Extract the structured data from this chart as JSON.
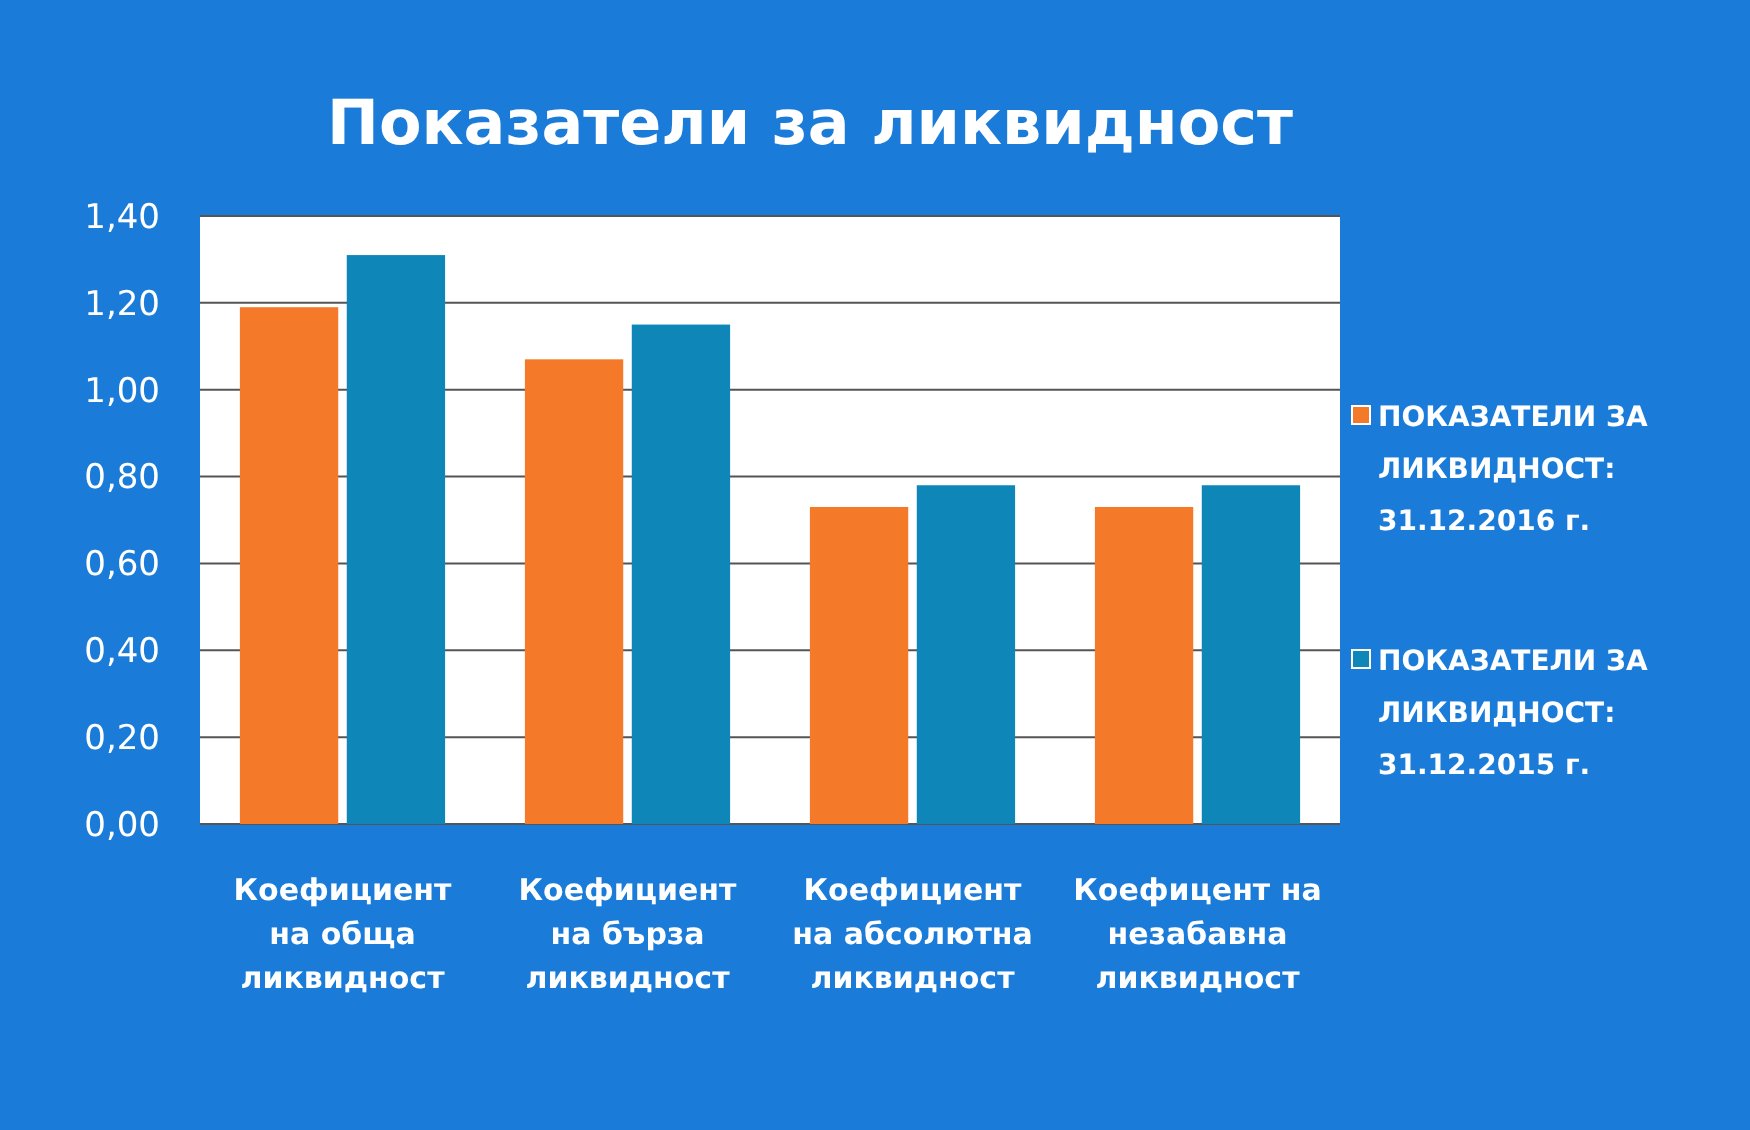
{
  "chart_data": {
    "type": "bar",
    "title": "Показатели за ликвидност",
    "categories": [
      "Коефициент на обща ликвидност",
      "Коефициент на бърза ликвидност",
      "Коефициент на абсолютна ликвидност",
      "Коефицент на незабавна ликвидност"
    ],
    "series": [
      {
        "name": "ПОКАЗАТЕЛИ ЗА ЛИКВИДНОСТ: 31.12.2016 г.",
        "color": "#f47a2a",
        "values": [
          1.19,
          1.07,
          0.73,
          0.73
        ]
      },
      {
        "name": "ПОКАЗАТЕЛИ ЗА ЛИКВИДНОСТ: 31.12.2015 г.",
        "color": "#0e86b8",
        "values": [
          1.31,
          1.15,
          0.78,
          0.78
        ]
      }
    ],
    "ylim": [
      0,
      1.4
    ],
    "yticks": [
      {
        "value": 0,
        "label": "0,00"
      },
      {
        "value": 0.2,
        "label": "0,20"
      },
      {
        "value": 0.4,
        "label": "0,40"
      },
      {
        "value": 0.6,
        "label": "0,60"
      },
      {
        "value": 0.8,
        "label": "0,80"
      },
      {
        "value": 1.0,
        "label": "1,00"
      },
      {
        "value": 1.2,
        "label": "1,20"
      },
      {
        "value": 1.4,
        "label": "1,40"
      }
    ],
    "grid": "y",
    "legend": "right"
  }
}
